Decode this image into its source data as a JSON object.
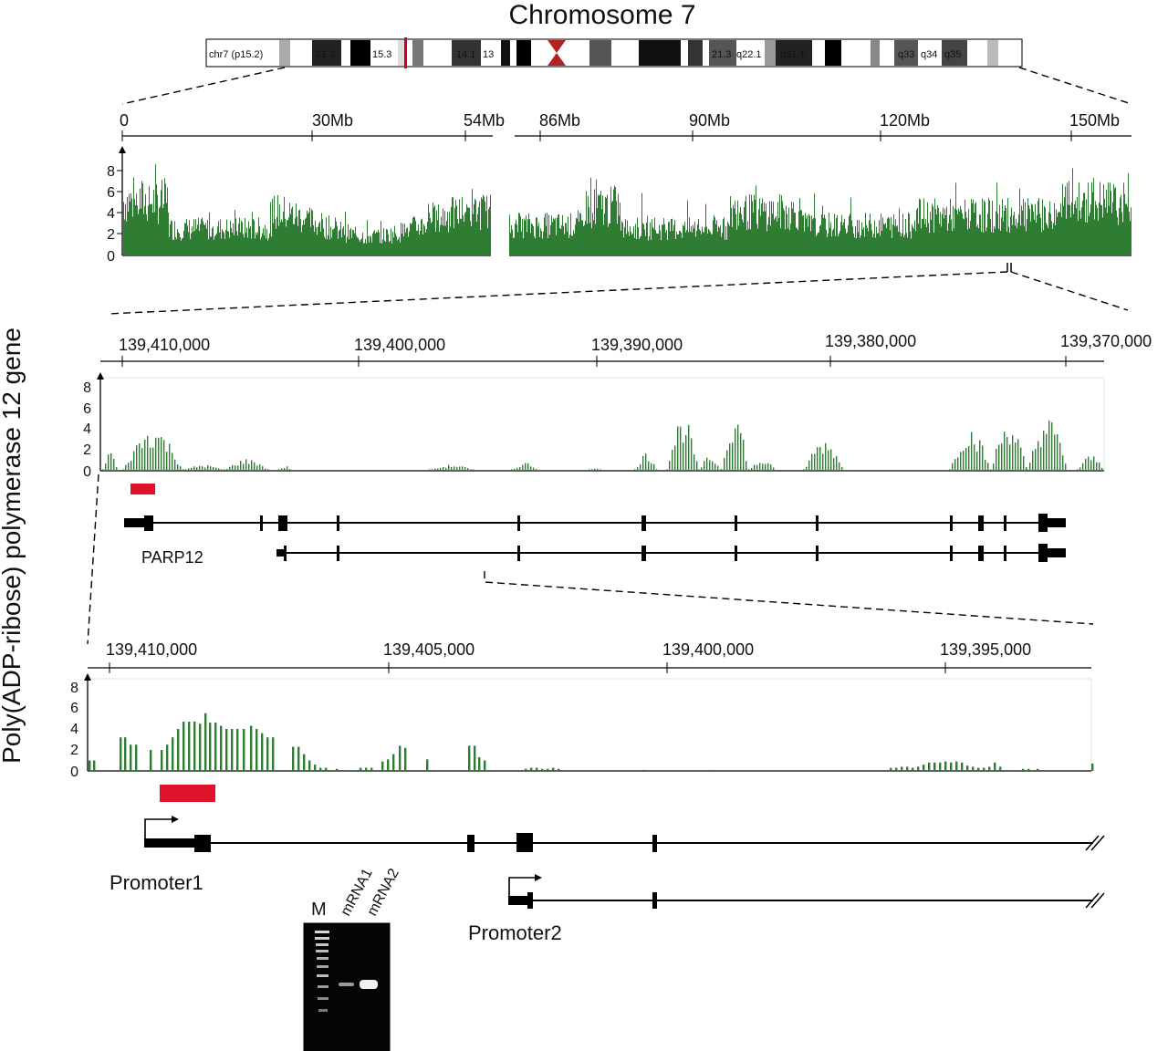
{
  "title": "Chromosome 7",
  "side_label": "Poly(ADP-ribose) polymerase 12 gene",
  "ideogram": {
    "start_label": "chr7 (p15.2)",
    "bands": [
      "21.3",
      "15.3",
      "14.1",
      "13",
      "q21.11",
      "21.3",
      "q22.1",
      "q31.1",
      "q33",
      "q34",
      "q35"
    ]
  },
  "colors": {
    "track": "#2e7d32",
    "highlight": "#e0112b",
    "gene": "#000000"
  },
  "panel1": {
    "ticks_left": [
      "0",
      "30Mb",
      "54Mb"
    ],
    "ticks_right": [
      "86Mb",
      "90Mb",
      "120Mb",
      "150Mb"
    ],
    "yticks": [
      "8",
      "6",
      "4",
      "2",
      "0"
    ]
  },
  "panel2": {
    "ticks": [
      "139,410,000",
      "139,400,000",
      "139,390,000",
      "139,380,000",
      "139,370,000"
    ],
    "yticks": [
      "8",
      "6",
      "4",
      "2",
      "0"
    ],
    "gene_name": "PARP12"
  },
  "panel3": {
    "ticks": [
      "139,410,000",
      "139,405,000",
      "139,400,000",
      "139,395,000"
    ],
    "yticks": [
      "8",
      "6",
      "4",
      "2",
      "0"
    ],
    "promoter1": "Promoter1",
    "promoter2": "Promoter2"
  },
  "gel": {
    "lanes": [
      "M",
      "mRNA1",
      "mRNA2"
    ]
  }
}
